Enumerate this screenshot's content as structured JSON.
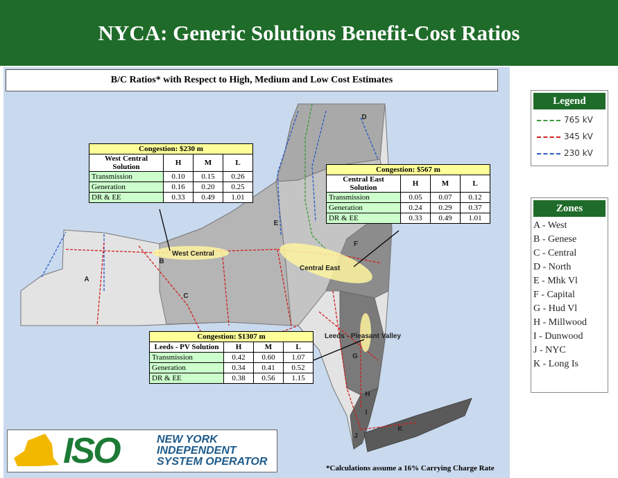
{
  "title": "NYCA: Generic Solutions Benefit-Cost Ratios",
  "subtitle": "B/C Ratios* with Respect to High, Medium and Low Cost Estimates",
  "legend": {
    "title": "Legend",
    "items": [
      "765 kV",
      "345 kV",
      "230 kV"
    ]
  },
  "zones": {
    "title": "Zones",
    "items": [
      "A - West",
      "B - Genese",
      "C - Central",
      "D - North",
      "E - Mhk Vl",
      "F - Capital",
      "G - Hud Vl",
      "H - Millwood",
      "I - Dunwood",
      "J - NYC",
      "K - Long Is"
    ]
  },
  "map_labels": {
    "zones": [
      "A",
      "B",
      "C",
      "D",
      "E",
      "F",
      "G",
      "H",
      "I",
      "J",
      "K"
    ],
    "corridors": [
      "West Central",
      "Central East",
      "Leeds - Pleasant Valley"
    ]
  },
  "tables": [
    {
      "congestion": "Congestion: $230 m",
      "headers": [
        "West Central Solution",
        "H",
        "M",
        "L"
      ],
      "rows": [
        [
          "Transmission",
          "0.10",
          "0.15",
          "0.26"
        ],
        [
          "Generation",
          "0.16",
          "0.20",
          "0.25"
        ],
        [
          "DR & EE",
          "0.33",
          "0.49",
          "1.01"
        ]
      ]
    },
    {
      "congestion": "Congestion: $567 m",
      "headers": [
        "Central East Solution",
        "H",
        "M",
        "L"
      ],
      "rows": [
        [
          "Transmission",
          "0.05",
          "0.07",
          "0.12"
        ],
        [
          "Generation",
          "0.24",
          "0.29",
          "0.37"
        ],
        [
          "DR & EE",
          "0.33",
          "0.49",
          "1.01"
        ]
      ]
    },
    {
      "congestion": "Congestion: $1307 m",
      "headers": [
        "Leeds - PV Solution",
        "H",
        "M",
        "L"
      ],
      "rows": [
        [
          "Transmission",
          "0.42",
          "0.60",
          "1.07"
        ],
        [
          "Generation",
          "0.34",
          "0.41",
          "0.52"
        ],
        [
          "DR & EE",
          "0.38",
          "0.56",
          "1.15"
        ]
      ]
    }
  ],
  "logo": {
    "mark": "ISO",
    "name": [
      "NEW YORK",
      "INDEPENDENT",
      "SYSTEM OPERATOR"
    ]
  },
  "footnote": "*Calculations assume a 16% Carrying Charge Rate"
}
